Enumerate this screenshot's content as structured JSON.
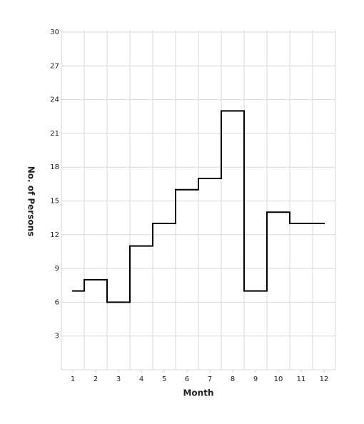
{
  "chart_data": {
    "type": "step",
    "x_label": "Month",
    "y_label": "No. of Persons",
    "x": [
      1,
      2,
      3,
      4,
      5,
      6,
      7,
      8,
      9,
      10,
      11,
      12
    ],
    "values": [
      7,
      8,
      6,
      11,
      13,
      16,
      17,
      23,
      7,
      14,
      13,
      13
    ],
    "color": "#000000",
    "xlim": [
      0.5,
      12.5
    ],
    "xticks": [
      1,
      2,
      3,
      4,
      5,
      6,
      7,
      8,
      9,
      10,
      11,
      12
    ],
    "ylim": [
      0,
      30
    ],
    "yticks": [
      3,
      6,
      9,
      12,
      15,
      18,
      21,
      24,
      27,
      30
    ],
    "grid": true
  }
}
